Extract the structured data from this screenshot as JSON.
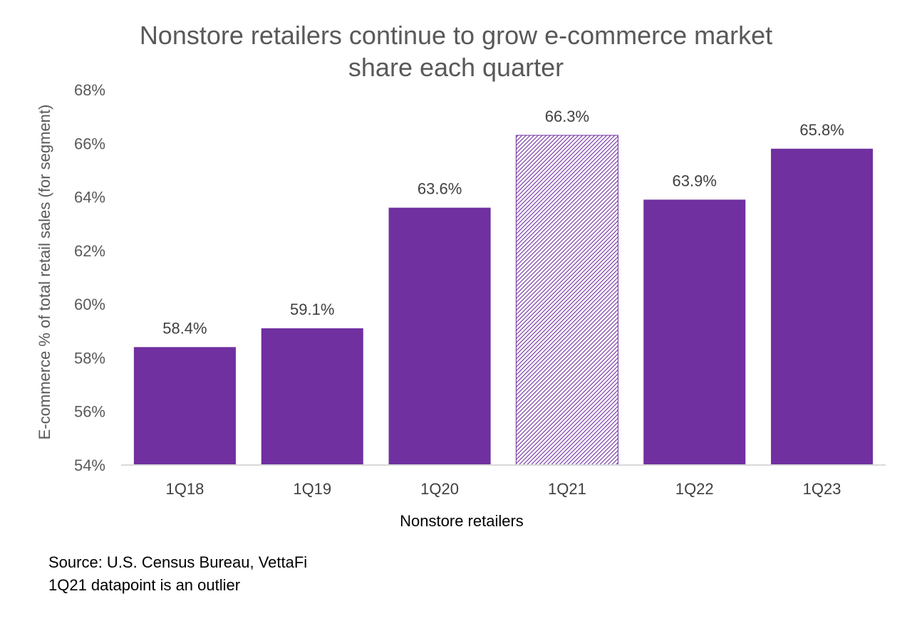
{
  "chart_data": {
    "type": "bar",
    "title_lines": [
      "Nonstore retailers continue to grow e-commerce market",
      "share each quarter"
    ],
    "categories": [
      "1Q18",
      "1Q19",
      "1Q20",
      "1Q21",
      "1Q22",
      "1Q23"
    ],
    "values": [
      58.4,
      59.1,
      63.6,
      66.3,
      63.9,
      65.8
    ],
    "data_labels": [
      "58.4%",
      "59.1%",
      "63.6%",
      "66.3%",
      "63.9%",
      "65.8%"
    ],
    "xlabel": "Nonstore retailers",
    "ylabel": "E-commerce % of total retail sales (for segment)",
    "ylim": [
      54,
      68
    ],
    "yticks": [
      54,
      56,
      58,
      60,
      62,
      64,
      66,
      68
    ],
    "ytick_labels": [
      "54%",
      "56%",
      "58%",
      "60%",
      "62%",
      "64%",
      "66%",
      "68%"
    ],
    "grid": false,
    "bar_color": "#7030A0",
    "highlighted_category": "1Q21",
    "highlight_style": "diagonal-hatch"
  },
  "notes": [
    "Source: U.S. Census Bureau, VettaFi",
    "1Q21 datapoint is an outlier"
  ]
}
